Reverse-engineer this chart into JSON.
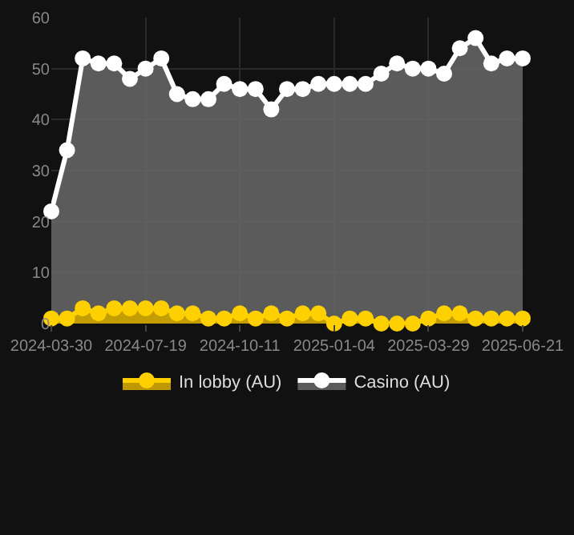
{
  "chart_data": {
    "type": "area",
    "categories": [
      "2024-03-30",
      null,
      null,
      null,
      null,
      null,
      "2024-07-19",
      null,
      null,
      null,
      null,
      null,
      "2024-10-11",
      null,
      null,
      null,
      null,
      null,
      "2025-01-04",
      null,
      null,
      null,
      null,
      null,
      "2025-03-29",
      null,
      null,
      null,
      null,
      null,
      "2025-06-21"
    ],
    "series": [
      {
        "name": "In lobby (AU)",
        "color": "#ffd000",
        "values": [
          1,
          1,
          3,
          2,
          3,
          3,
          3,
          3,
          2,
          2,
          1,
          1,
          2,
          1,
          2,
          1,
          2,
          2,
          0,
          1,
          1,
          0,
          0,
          0,
          1,
          2,
          2,
          1,
          1,
          1,
          1
        ]
      },
      {
        "name": "Casino (AU)",
        "color": "#ffffff",
        "values": [
          22,
          34,
          52,
          51,
          51,
          48,
          50,
          52,
          45,
          44,
          44,
          47,
          46,
          46,
          42,
          46,
          46,
          47,
          47,
          47,
          47,
          49,
          51,
          50,
          50,
          49,
          54,
          56,
          51,
          52,
          52
        ]
      }
    ],
    "ylim": [
      0,
      60
    ],
    "yticks": [
      0,
      10,
      20,
      30,
      40,
      50,
      60
    ],
    "grid": true,
    "legend": "bottom",
    "marker": "circle",
    "line_style": "solid"
  }
}
